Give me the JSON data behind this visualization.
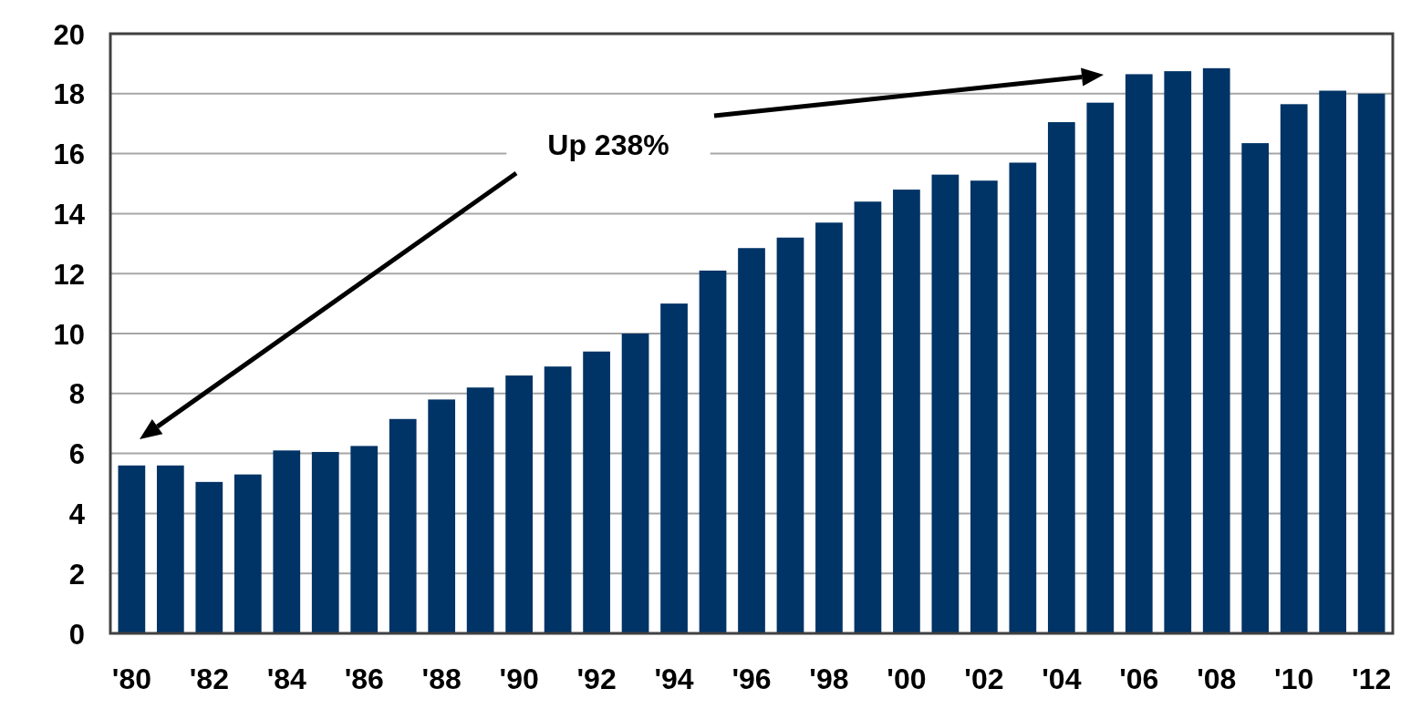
{
  "chart_data": {
    "type": "bar",
    "categories": [
      "'80",
      null,
      "'82",
      null,
      "'84",
      null,
      "'86",
      null,
      "'88",
      null,
      "'90",
      null,
      "'92",
      null,
      "'94",
      null,
      "'96",
      null,
      "'98",
      null,
      "'00",
      null,
      "'02",
      null,
      "'04",
      null,
      "'06",
      null,
      "'08",
      null,
      "'10",
      null,
      "'12"
    ],
    "values": [
      5.6,
      5.6,
      5.05,
      5.3,
      6.1,
      6.05,
      6.25,
      7.15,
      7.8,
      8.2,
      8.6,
      8.9,
      9.4,
      10.0,
      11.0,
      12.1,
      12.85,
      13.2,
      13.7,
      14.4,
      14.8,
      15.3,
      15.1,
      15.7,
      17.05,
      17.7,
      18.65,
      18.75,
      18.85,
      16.35,
      17.65,
      18.1,
      18.0
    ],
    "color": "#003366",
    "ylim": [
      0,
      20
    ],
    "yticks": [
      0,
      2,
      4,
      6,
      8,
      10,
      12,
      14,
      16,
      18,
      20
    ],
    "grid": "y",
    "annotations": [
      "Up 238%"
    ]
  }
}
